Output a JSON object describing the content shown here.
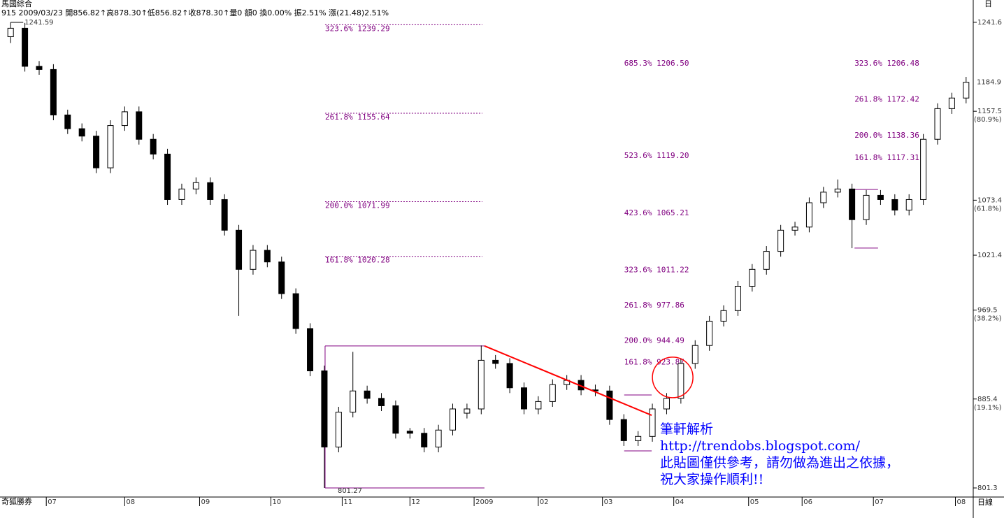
{
  "chart_data": {
    "type": "candlestick",
    "title": "馬國綜合",
    "subtitle": "915 2009/03/23 開856.82↑高878.30↑低856.82↑收878.30↑量0 額0 換0.00% 振2.51% 漲(21.48)2.51%",
    "source_label": "奇狐勝券",
    "period_label": "日線",
    "period_short": "日",
    "x": [
      2,
      6,
      10,
      14,
      18,
      22,
      26,
      30,
      34,
      38,
      42,
      46,
      50,
      54,
      58,
      62,
      66,
      70,
      74,
      78,
      82,
      86,
      90,
      94,
      98,
      102,
      106,
      110,
      114,
      118,
      122,
      126,
      130,
      134,
      138,
      142,
      146,
      150,
      154,
      158,
      162,
      166,
      170,
      174,
      178,
      182,
      186,
      190,
      194,
      198,
      202,
      206,
      210,
      214,
      218,
      222,
      226,
      230,
      234,
      238,
      242,
      246,
      250,
      254,
      258,
      262,
      266,
      270
    ],
    "open": [
      1228,
      1236,
      1200,
      1197,
      1154,
      1141,
      1134,
      1104,
      1144,
      1157,
      1131,
      1117,
      1074,
      1084,
      1090,
      1074,
      1045,
      1008,
      1026,
      1015,
      985,
      952,
      912,
      840,
      873,
      893,
      886,
      879,
      855,
      853,
      840,
      856,
      872,
      876,
      922,
      919,
      896,
      876,
      883,
      899,
      903,
      894,
      893,
      866,
      846,
      850,
      876,
      886,
      919,
      936,
      959,
      969,
      992,
      1008,
      1025,
      1045,
      1048,
      1071,
      1081,
      1084,
      1055,
      1078,
      1074,
      1064,
      1074,
      1131,
      1160,
      1170
    ],
    "high": [
      1241.59,
      1241,
      1205,
      1202,
      1159,
      1146,
      1139,
      1149,
      1162,
      1162,
      1136,
      1122,
      1089,
      1095,
      1095,
      1079,
      1050,
      1031,
      1031,
      1020,
      990,
      957,
      917,
      878,
      930,
      898,
      891,
      884,
      858,
      858,
      861,
      881,
      881,
      936,
      927,
      924,
      901,
      888,
      904,
      908,
      908,
      899,
      898,
      871,
      855,
      881,
      891,
      924,
      941,
      964,
      974,
      997,
      1013,
      1030,
      1050,
      1053,
      1076,
      1086,
      1093,
      1089,
      1083,
      1083,
      1079,
      1079,
      1136,
      1165,
      1175,
      1190
    ],
    "low": [
      1222,
      1195,
      1192,
      1149,
      1136,
      1129,
      1099,
      1099,
      1139,
      1126,
      1112,
      1069,
      1069,
      1079,
      1069,
      1040,
      964,
      1003,
      1010,
      980,
      947,
      907,
      801.27,
      835,
      868,
      881,
      874,
      848,
      848,
      835,
      835,
      851,
      867,
      871,
      914,
      891,
      871,
      871,
      878,
      894,
      889,
      888,
      861,
      841,
      841,
      845,
      871,
      881,
      914,
      931,
      954,
      964,
      987,
      1003,
      1020,
      1040,
      1043,
      1066,
      1076,
      1028,
      1050,
      1069,
      1059,
      1059,
      1069,
      1126,
      1155,
      1165
    ],
    "close": [
      1236,
      1200,
      1197,
      1154,
      1141,
      1134,
      1104,
      1144,
      1157,
      1131,
      1117,
      1074,
      1084,
      1090,
      1074,
      1045,
      1008,
      1026,
      1015,
      985,
      952,
      912,
      840,
      873,
      893,
      886,
      879,
      853,
      853,
      840,
      856,
      876,
      876,
      922,
      919,
      896,
      876,
      883,
      899,
      903,
      894,
      893,
      866,
      846,
      850,
      876,
      886,
      919,
      936,
      959,
      969,
      992,
      1008,
      1025,
      1045,
      1048,
      1071,
      1081,
      1084,
      1055,
      1078,
      1074,
      1064,
      1074,
      1131,
      1160,
      1170,
      1184.9
    ],
    "xlim": [
      0,
      272
    ],
    "ylim": [
      792.7,
      1244.2
    ],
    "xticks": [
      {
        "value": 12,
        "label": "07"
      },
      {
        "value": 34,
        "label": "08"
      },
      {
        "value": 55,
        "label": "09"
      },
      {
        "value": 75,
        "label": "10"
      },
      {
        "value": 95,
        "label": "11"
      },
      {
        "value": 114,
        "label": "12"
      },
      {
        "value": 132,
        "label": "2009"
      },
      {
        "value": 150,
        "label": "02"
      },
      {
        "value": 168,
        "label": "03"
      },
      {
        "value": 188,
        "label": "04"
      },
      {
        "value": 209,
        "label": "05"
      },
      {
        "value": 224,
        "label": "06"
      },
      {
        "value": 244,
        "label": "07"
      },
      {
        "value": 267,
        "label": "08"
      }
    ],
    "yticks": [
      1241.6,
      1157.5,
      1073.4,
      1021.4,
      969.5,
      885.4,
      801.3
    ],
    "y_percent_labels": [
      {
        "value": 1157.5,
        "label": "(80.9%)"
      },
      {
        "value": 1073.4,
        "label": "(61.8%)"
      },
      {
        "value": 969.5,
        "label": "(38.2%)"
      },
      {
        "value": 885.4,
        "label": "(19.1%)"
      }
    ],
    "last_price": 1184.9,
    "high_label": 1241.59,
    "low_label": 801.27,
    "range_box": {
      "x": [
        90.2,
        134.9
      ],
      "y": [
        801.27,
        935.6
      ]
    },
    "trendline": {
      "x": [
        134.9,
        181.8
      ],
      "y": [
        935.6,
        870
      ],
      "color": "#ff0000"
    },
    "circle": {
      "x": 187.7,
      "y": 905.8,
      "color": "#ff0000"
    },
    "brackets": [
      {
        "x": [
          174.1,
          181.8
        ],
        "y": [
          889.2,
          836.3
        ]
      },
      {
        "x": [
          238.7,
          245.3
        ],
        "y": [
          1083.6,
          1028.1
        ]
      }
    ],
    "fib_groups": [
      {
        "x": [
          90.2,
          134.3
        ],
        "lines": true,
        "levels": [
          {
            "value": 1239.29,
            "label": "323.6% 1239.29"
          },
          {
            "value": 1155.64,
            "label": "261.8% 1155.64"
          },
          {
            "value": 1071.99,
            "label": "200.0% 1071.99"
          },
          {
            "value": 1020.28,
            "label": "161.8% 1020.28"
          }
        ]
      },
      {
        "x": [
          174.1
        ],
        "lines": false,
        "levels": [
          {
            "value": 1206.5,
            "label": "685.3% 1206.50"
          },
          {
            "value": 1119.2,
            "label": "523.6% 1119.20"
          },
          {
            "value": 1065.21,
            "label": "423.6% 1065.21"
          },
          {
            "value": 1011.22,
            "label": "323.6% 1011.22"
          },
          {
            "value": 977.86,
            "label": "261.8% 977.86"
          },
          {
            "value": 944.49,
            "label": "200.0% 944.49"
          },
          {
            "value": 923.87,
            "label": "161.8% 923.87"
          }
        ]
      },
      {
        "x": [
          238.7
        ],
        "lines": false,
        "levels": [
          {
            "value": 1206.48,
            "label": "323.6% 1206.48"
          },
          {
            "value": 1172.42,
            "label": "261.8% 1172.42"
          },
          {
            "value": 1138.36,
            "label": "200.0% 1138.36"
          },
          {
            "value": 1117.31,
            "label": "161.8% 1117.31"
          }
        ]
      }
    ],
    "fib_color": "#800080",
    "notes": [
      "筆軒解析",
      "http://trendobs.blogspot.com/",
      "此貼圖僅供參考，請勿做為進出之依據，",
      "祝大家操作順利!!"
    ]
  }
}
